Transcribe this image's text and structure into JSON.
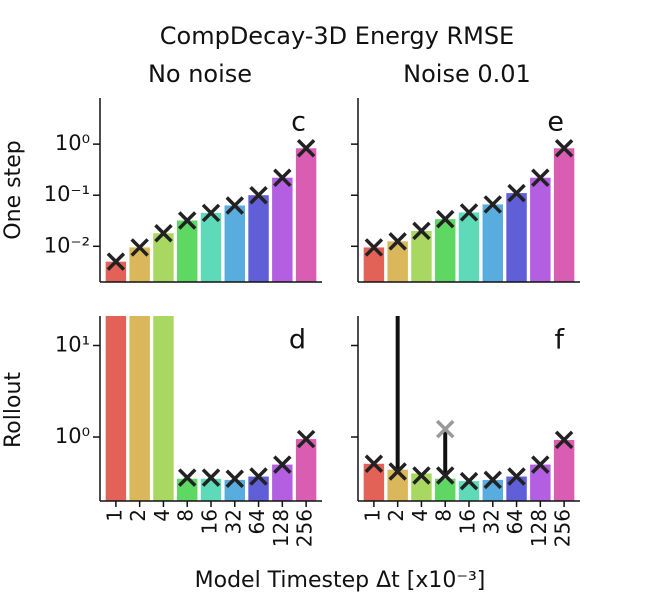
{
  "title": "CompDecay-3D Energy RMSE",
  "xlabel": "Model Timestep Δt [x10⁻³]",
  "col_titles": [
    "No noise",
    "Noise 0.01"
  ],
  "row_labels": [
    "One step",
    "Rollout"
  ],
  "chart_data": [
    {
      "type": "bar",
      "log_scale": true,
      "panel_label": "c",
      "colors": [
        "#e05a4f",
        "#d9b352",
        "#a4d65a",
        "#55d65a",
        "#55d8b5",
        "#4fa8dc",
        "#5856d6",
        "#b055e0",
        "#d854b0"
      ],
      "values": [
        0.005,
        0.0095,
        0.018,
        0.032,
        0.045,
        0.063,
        0.1,
        0.22,
        0.83
      ],
      "markers": [
        0.005,
        0.0095,
        0.018,
        0.032,
        0.045,
        0.063,
        0.1,
        0.22,
        0.83
      ],
      "ylim": [
        0.002,
        8
      ],
      "yticks": [
        {
          "value": 0.01,
          "label": "10⁻²"
        },
        {
          "value": 0.1,
          "label": "10⁻¹"
        },
        {
          "value": 1,
          "label": "10⁰"
        }
      ]
    },
    {
      "type": "bar",
      "log_scale": true,
      "panel_label": "e",
      "colors": [
        "#e05a4f",
        "#d9b352",
        "#a4d65a",
        "#55d65a",
        "#55d8b5",
        "#4fa8dc",
        "#5856d6",
        "#b055e0",
        "#d854b0"
      ],
      "values": [
        0.0095,
        0.0125,
        0.02,
        0.034,
        0.046,
        0.066,
        0.11,
        0.22,
        0.83
      ],
      "markers": [
        0.0095,
        0.0125,
        0.02,
        0.034,
        0.046,
        0.066,
        0.11,
        0.22,
        0.83
      ],
      "ylim": [
        0.002,
        8
      ],
      "yticks": [
        0.01,
        0.1,
        1
      ]
    },
    {
      "type": "bar",
      "log_scale": true,
      "panel_label": "d",
      "colors": [
        "#e05a4f",
        "#d9b352",
        "#a4d65a",
        "#55d65a",
        "#55d8b5",
        "#4fa8dc",
        "#5856d6",
        "#b055e0",
        "#d854b0"
      ],
      "categories": [
        "1",
        "2",
        "4",
        "8",
        "16",
        "32",
        "64",
        "128",
        "256"
      ],
      "values": [
        21,
        21,
        21,
        0.35,
        0.35,
        0.34,
        0.37,
        0.5,
        0.95
      ],
      "markers": [
        null,
        null,
        null,
        0.36,
        0.36,
        0.35,
        0.37,
        0.5,
        0.95
      ],
      "ylim": [
        0.2,
        21
      ],
      "yticks": [
        {
          "value": 1,
          "label": "10⁰"
        },
        {
          "value": 10,
          "label": "10¹"
        }
      ]
    },
    {
      "type": "bar",
      "log_scale": true,
      "panel_label": "f",
      "colors": [
        "#e05a4f",
        "#d9b352",
        "#a4d65a",
        "#55d65a",
        "#55d8b5",
        "#4fa8dc",
        "#5856d6",
        "#b055e0",
        "#d854b0"
      ],
      "categories": [
        "1",
        "2",
        "4",
        "8",
        "16",
        "32",
        "64",
        "128",
        "256"
      ],
      "values": [
        0.51,
        0.44,
        0.4,
        0.35,
        0.33,
        0.34,
        0.37,
        0.5,
        0.93
      ],
      "markers": [
        0.51,
        0.42,
        0.38,
        0.38,
        0.33,
        0.34,
        0.37,
        0.5,
        0.93
      ],
      "error_high": [
        null,
        21,
        null,
        1.22,
        null,
        null,
        null,
        null,
        null
      ],
      "alt_markers": [
        null,
        null,
        null,
        1.22,
        null,
        null,
        null,
        null,
        null
      ],
      "alt_marker_color": "#999999",
      "ylim": [
        0.2,
        21
      ],
      "yticks": [
        1,
        10
      ]
    }
  ]
}
